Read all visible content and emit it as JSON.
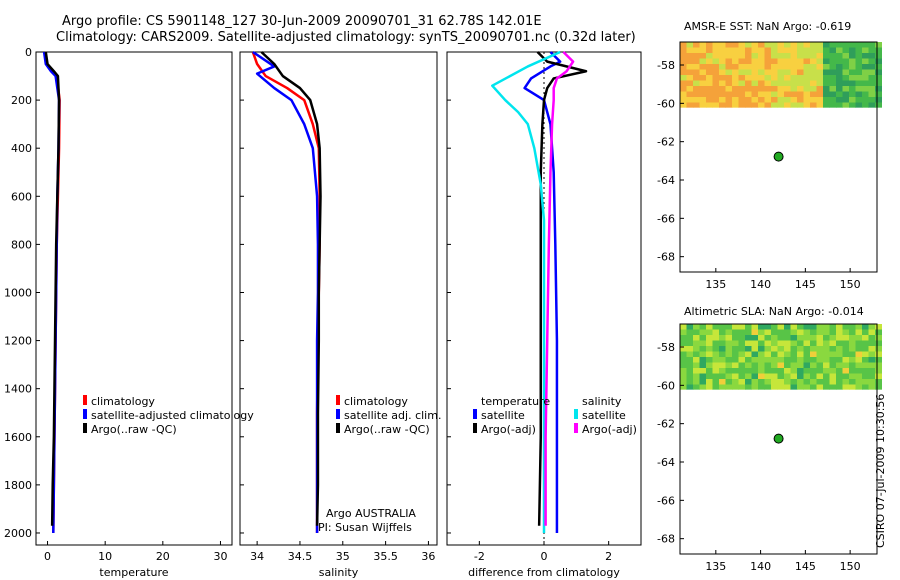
{
  "header": {
    "line1": "Argo profile: CS 5901148_127 30-Jun-2009 20090701_31 62.78S 142.01E",
    "line2": "Climatology: CARS2009. Satellite-adjusted climatology: synTS_20090701.nc (0.32d later)"
  },
  "stamp": "CSIRO 07-Jul-2009 10:30:56",
  "colors": {
    "climatology": "#ff0000",
    "satellite": "#0000ff",
    "argo": "#000000",
    "sat_salinity": "#00e5ee",
    "argo_salinity": "#ff00ff",
    "float": "#22aa22"
  },
  "chart_data": [
    {
      "id": "temperature",
      "type": "line",
      "xlabel": "temperature",
      "ylabel": "",
      "xlim": [
        -2,
        32
      ],
      "ylim": [
        2050,
        0
      ],
      "xticks": [
        0,
        10,
        20,
        30
      ],
      "yticks": [
        0,
        200,
        400,
        600,
        800,
        1000,
        1200,
        1400,
        1600,
        1800,
        2000
      ],
      "legend": [
        "climatology",
        "satellite-adjusted climatology",
        "Argo(..raw -QC)"
      ],
      "series": [
        {
          "name": "climatology",
          "color": "#ff0000",
          "x": [
            -0.4,
            -0.1,
            0.9,
            1.6,
            2.1,
            2.0,
            1.8,
            1.6,
            1.5,
            1.4,
            1.3,
            1.2,
            1.1,
            1.0
          ],
          "y": [
            0,
            50,
            80,
            100,
            200,
            400,
            600,
            800,
            1000,
            1200,
            1400,
            1600,
            1800,
            2000
          ]
        },
        {
          "name": "satellite-adjusted climatology",
          "color": "#0000ff",
          "x": [
            -0.6,
            -0.3,
            0.6,
            1.4,
            2.0,
            1.9,
            1.7,
            1.6,
            1.5,
            1.4,
            1.3,
            1.2,
            1.1,
            1.0
          ],
          "y": [
            0,
            50,
            80,
            100,
            200,
            400,
            600,
            800,
            1000,
            1200,
            1400,
            1600,
            1800,
            2000
          ]
        },
        {
          "name": "Argo(..raw -QC)",
          "color": "#000000",
          "x": [
            -0.3,
            0.0,
            1.1,
            1.8,
            2.0,
            1.9,
            1.7,
            1.5,
            1.4,
            1.3,
            1.2,
            1.1,
            0.9,
            0.8
          ],
          "y": [
            0,
            50,
            80,
            100,
            200,
            400,
            600,
            800,
            1000,
            1200,
            1400,
            1600,
            1800,
            1970
          ]
        }
      ]
    },
    {
      "id": "salinity",
      "type": "line",
      "xlabel": "salinity",
      "ylabel": "",
      "xlim": [
        33.8,
        36.1
      ],
      "ylim": [
        2050,
        0
      ],
      "xticks": [
        34,
        34.5,
        35,
        35.5,
        36
      ],
      "yticks": [
        0,
        200,
        400,
        600,
        800,
        1000,
        1200,
        1400,
        1600,
        1800,
        2000
      ],
      "legend": [
        "climatology",
        "satellite adj. clim.",
        "Argo(..raw -QC)"
      ],
      "notes": [
        "Argo AUSTRALIA",
        "PI: Susan Wijffels"
      ],
      "series": [
        {
          "name": "climatology",
          "color": "#ff0000",
          "x": [
            33.95,
            34.0,
            34.1,
            34.35,
            34.55,
            34.65,
            34.72,
            34.73,
            34.73,
            34.72,
            34.71,
            34.7,
            34.7,
            34.7
          ],
          "y": [
            0,
            50,
            100,
            150,
            200,
            300,
            400,
            600,
            800,
            1000,
            1200,
            1500,
            1800,
            2000
          ]
        },
        {
          "name": "satellite adj. clim.",
          "color": "#0000ff",
          "x": [
            33.95,
            34.2,
            34.0,
            34.2,
            34.4,
            34.55,
            34.65,
            34.7,
            34.71,
            34.71,
            34.7,
            34.7,
            34.7,
            34.7
          ],
          "y": [
            0,
            60,
            90,
            150,
            200,
            300,
            400,
            600,
            800,
            1000,
            1200,
            1500,
            1800,
            2000
          ]
        },
        {
          "name": "Argo(..raw -QC)",
          "color": "#000000",
          "x": [
            34.05,
            34.2,
            34.3,
            34.5,
            34.62,
            34.7,
            34.73,
            34.74,
            34.73,
            34.72,
            34.72,
            34.71,
            34.71,
            34.7
          ],
          "y": [
            0,
            50,
            100,
            150,
            200,
            300,
            400,
            600,
            800,
            1000,
            1200,
            1500,
            1800,
            1970
          ]
        }
      ]
    },
    {
      "id": "difference",
      "type": "line",
      "xlabel": "difference from climatology",
      "ylabel": "",
      "xlim": [
        -3,
        3
      ],
      "ylim": [
        2050,
        0
      ],
      "xticks": [
        -2,
        0,
        2
      ],
      "yticks": [
        0,
        200,
        400,
        600,
        800,
        1000,
        1200,
        1400,
        1600,
        1800,
        2000
      ],
      "legend_left_title": "temperature",
      "legend_left": [
        "satellite",
        "Argo(-adj)"
      ],
      "legend_right_title": "salinity",
      "legend_right": [
        "satellite",
        "Argo(-adj)"
      ],
      "series": [
        {
          "name": "temperature satellite",
          "color": "#0000ff",
          "x": [
            0.2,
            0.5,
            0.2,
            -0.4,
            -0.6,
            0.0,
            0.2,
            0.3,
            0.35,
            0.4,
            0.4,
            0.4
          ],
          "y": [
            0,
            40,
            60,
            110,
            150,
            200,
            300,
            500,
            800,
            1200,
            1600,
            2000
          ]
        },
        {
          "name": "temperature Argo(-adj)",
          "color": "#000000",
          "x": [
            -0.2,
            0.1,
            1.3,
            0.3,
            0.1,
            0.0,
            -0.05,
            -0.1,
            -0.1,
            -0.1,
            -0.1,
            -0.15
          ],
          "y": [
            0,
            40,
            80,
            110,
            150,
            200,
            300,
            500,
            800,
            1200,
            1600,
            1970
          ]
        },
        {
          "name": "salinity satellite",
          "color": "#00e5ee",
          "x": [
            0.5,
            -0.5,
            -1.6,
            -1.2,
            -0.8,
            -0.5,
            -0.3,
            -0.1,
            0.0,
            0.0,
            0.0,
            0.0
          ],
          "y": [
            0,
            60,
            140,
            200,
            250,
            300,
            400,
            550,
            700,
            1000,
            1500,
            2000
          ]
        },
        {
          "name": "salinity Argo(-adj)",
          "color": "#ff00ff",
          "x": [
            0.6,
            0.9,
            0.7,
            0.4,
            0.3,
            0.3,
            0.25,
            0.2,
            0.15,
            0.1,
            0.05,
            0.05
          ],
          "y": [
            0,
            40,
            80,
            110,
            150,
            200,
            300,
            500,
            800,
            1200,
            1600,
            1970
          ]
        }
      ]
    },
    {
      "id": "sst_map",
      "type": "heatmap",
      "title": "AMSR-E SST: NaN  Argo: -0.619",
      "xlim": [
        131,
        153
      ],
      "ylim": [
        -68.8,
        -56.8
      ],
      "xticks": [
        135,
        140,
        145,
        150
      ],
      "yticks": [
        -58,
        -60,
        -62,
        -64,
        -66,
        -68
      ],
      "float_position": {
        "lon": 142.01,
        "lat": -62.78
      }
    },
    {
      "id": "sla_map",
      "type": "heatmap",
      "title": "Altimetric SLA: NaN  Argo: -0.014",
      "xlim": [
        131,
        153
      ],
      "ylim": [
        -68.8,
        -56.8
      ],
      "xticks": [
        135,
        140,
        145,
        150
      ],
      "yticks": [
        -58,
        -60,
        -62,
        -64,
        -66,
        -68
      ],
      "float_position": {
        "lon": 142.01,
        "lat": -62.78
      }
    }
  ]
}
